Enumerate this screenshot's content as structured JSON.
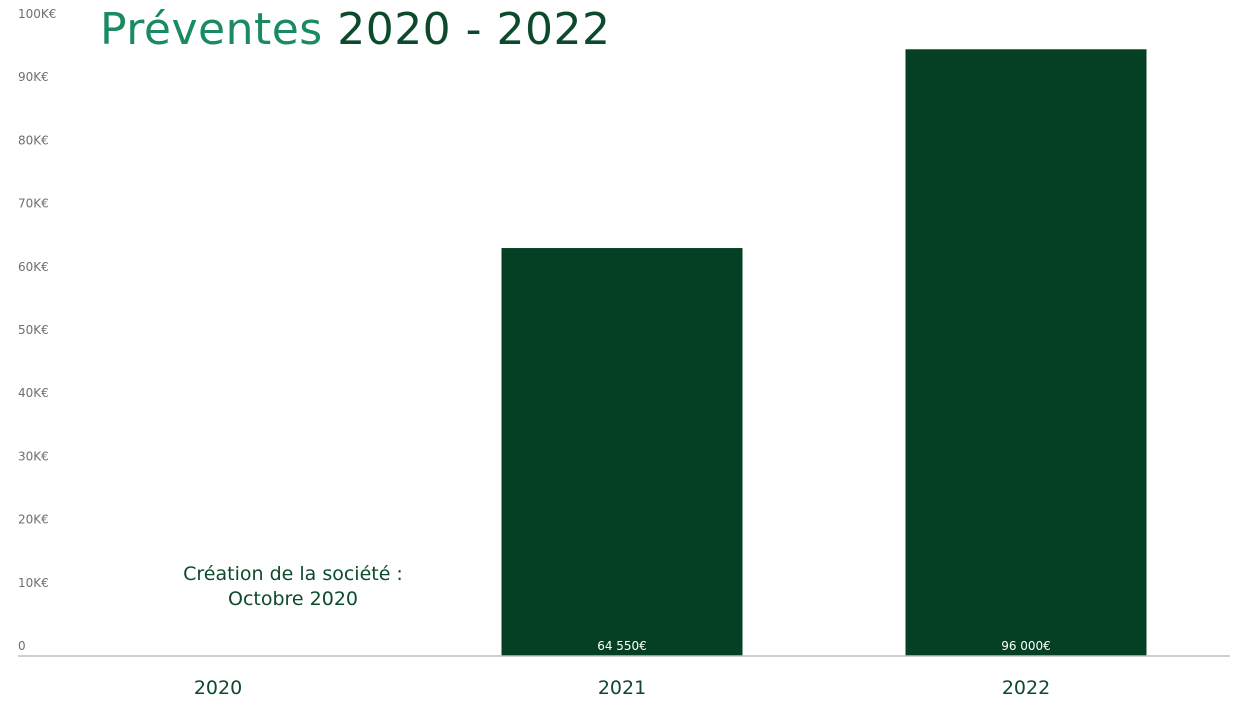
{
  "chart_data": {
    "type": "bar",
    "title_part1": "Préventes",
    "title_part2": "2020 - 2022",
    "xlabel": "",
    "ylabel": "",
    "categories": [
      "2020",
      "2021",
      "2022"
    ],
    "values": [
      0,
      64550,
      96000
    ],
    "data_labels": [
      "",
      "64 550€",
      "96 000€"
    ],
    "ylim": [
      0,
      100000
    ],
    "yticks": [
      0,
      10000,
      20000,
      30000,
      40000,
      50000,
      60000,
      70000,
      80000,
      90000,
      100000
    ],
    "ytick_labels": [
      "0",
      "10K€",
      "20K€",
      "30K€",
      "40K€",
      "50K€",
      "60K€",
      "70K€",
      "80K€",
      "90K€",
      "100K€"
    ],
    "grid": false,
    "bar_color": "#064024",
    "annotations": [
      {
        "category": "2020",
        "lines": [
          "Création de la société :",
          "Octobre 2020"
        ]
      }
    ]
  }
}
